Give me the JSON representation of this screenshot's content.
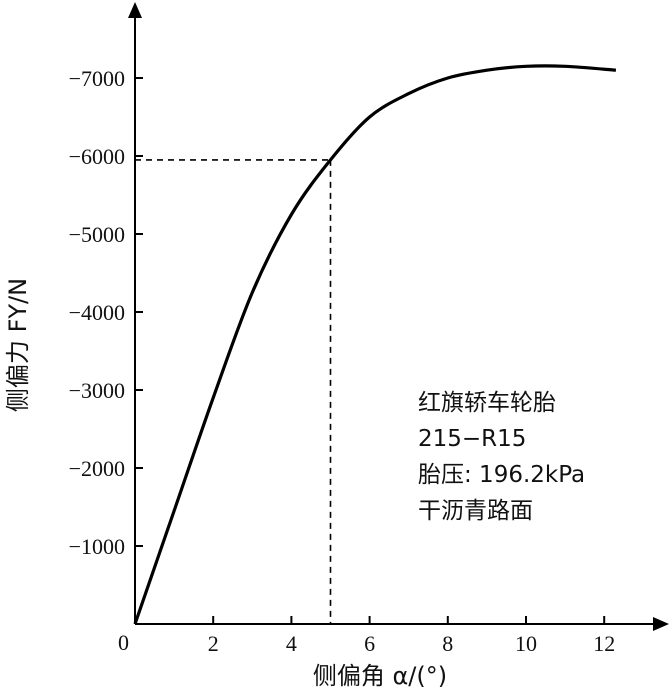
{
  "chart_data": {
    "type": "line",
    "xlabel": "侧偏角 α/(°)",
    "ylabel": "侧偏力 FY/N",
    "xlim": [
      0,
      13
    ],
    "ylim": [
      0,
      -7700
    ],
    "x_ticks": [
      0,
      2,
      4,
      6,
      8,
      10,
      12
    ],
    "x_tick_labels": [
      "0",
      "2",
      "4",
      "6",
      "8",
      "10",
      "12"
    ],
    "y_ticks": [
      -1000,
      -2000,
      -3000,
      -4000,
      -5000,
      -6000,
      -7000
    ],
    "y_tick_labels": [
      "−1000",
      "−2000",
      "−3000",
      "−4000",
      "−5000",
      "−6000",
      "−7000"
    ],
    "grid": false,
    "series": [
      {
        "x": [
          0,
          1,
          2,
          3,
          4,
          5,
          6,
          7,
          8,
          9,
          10,
          11,
          12.3
        ],
        "values": [
          0,
          -1450,
          -2900,
          -4250,
          -5250,
          -5950,
          -6500,
          -6800,
          -7000,
          -7100,
          -7150,
          -7150,
          -7100
        ]
      }
    ],
    "marker": {
      "x": 5,
      "y": -5950,
      "style": "dashed"
    },
    "annotations": [
      "红旗轿车轮胎",
      "215−R15",
      "胎压: 196.2kPa",
      "干沥青路面"
    ]
  }
}
